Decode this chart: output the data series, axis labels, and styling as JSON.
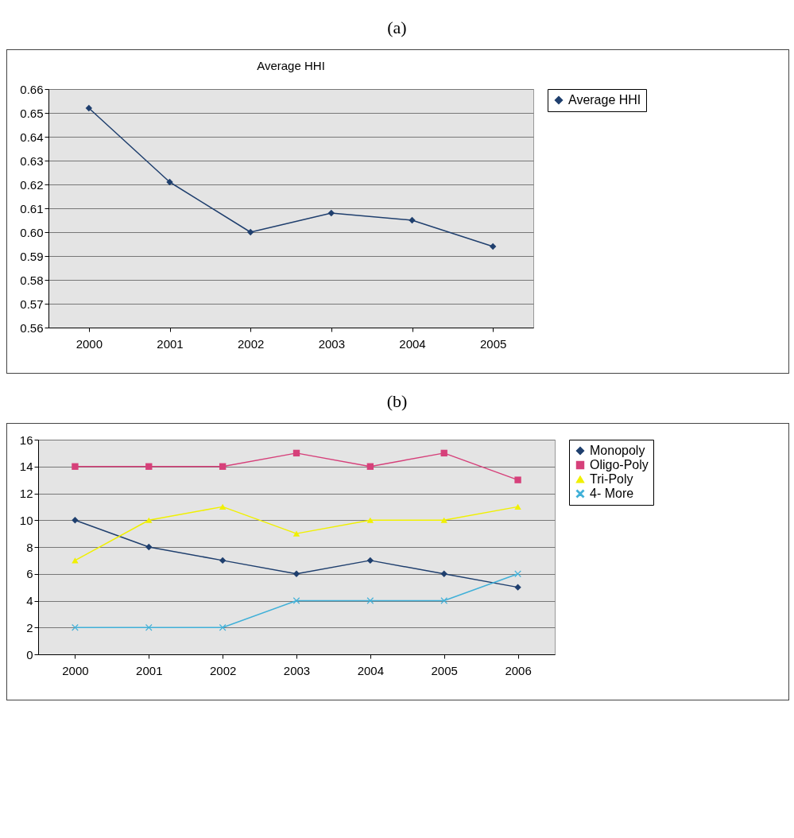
{
  "chart_data": [
    {
      "type": "line",
      "title": "Average HHI",
      "annotations": [
        "(a)"
      ],
      "categories": [
        "2000",
        "2001",
        "2002",
        "2003",
        "2004",
        "2005"
      ],
      "series": [
        {
          "name": "Average HHI",
          "color": "#1f3f6e",
          "marker": "diamond",
          "values": [
            0.652,
            0.621,
            0.6,
            0.608,
            0.605,
            0.594
          ]
        }
      ],
      "ylim": [
        0.56,
        0.66
      ],
      "yticks": [
        0.56,
        0.57,
        0.58,
        0.59,
        {
          "value": 0.6,
          "label": "0.60"
        },
        0.61,
        0.62,
        0.63,
        0.64,
        0.65,
        0.66
      ],
      "grid": "y",
      "legend": "right"
    },
    {
      "type": "line",
      "annotations": [
        "(b)"
      ],
      "categories": [
        "2000",
        "2001",
        "2002",
        "2003",
        "2004",
        "2005",
        "2006"
      ],
      "series": [
        {
          "name": "Monopoly",
          "color": "#1f3f6e",
          "marker": "diamond",
          "values": [
            10,
            8,
            7,
            6,
            7,
            6,
            5
          ]
        },
        {
          "name": "Oligo-Poly",
          "color": "#d6407a",
          "marker": "square",
          "values": [
            14,
            14,
            14,
            15,
            14,
            15,
            13
          ]
        },
        {
          "name": "Tri-Poly",
          "color": "#f0f000",
          "marker": "triangle",
          "values": [
            7,
            10,
            11,
            9,
            10,
            10,
            11
          ]
        },
        {
          "name": "4- More",
          "color": "#40b0d8",
          "marker": "cross",
          "values": [
            2,
            2,
            2,
            4,
            4,
            4,
            6
          ]
        }
      ],
      "ylim": [
        0,
        16
      ],
      "yticks": [
        0,
        2,
        4,
        6,
        8,
        10,
        12,
        14,
        16
      ],
      "grid": "y",
      "legend": "right"
    }
  ]
}
